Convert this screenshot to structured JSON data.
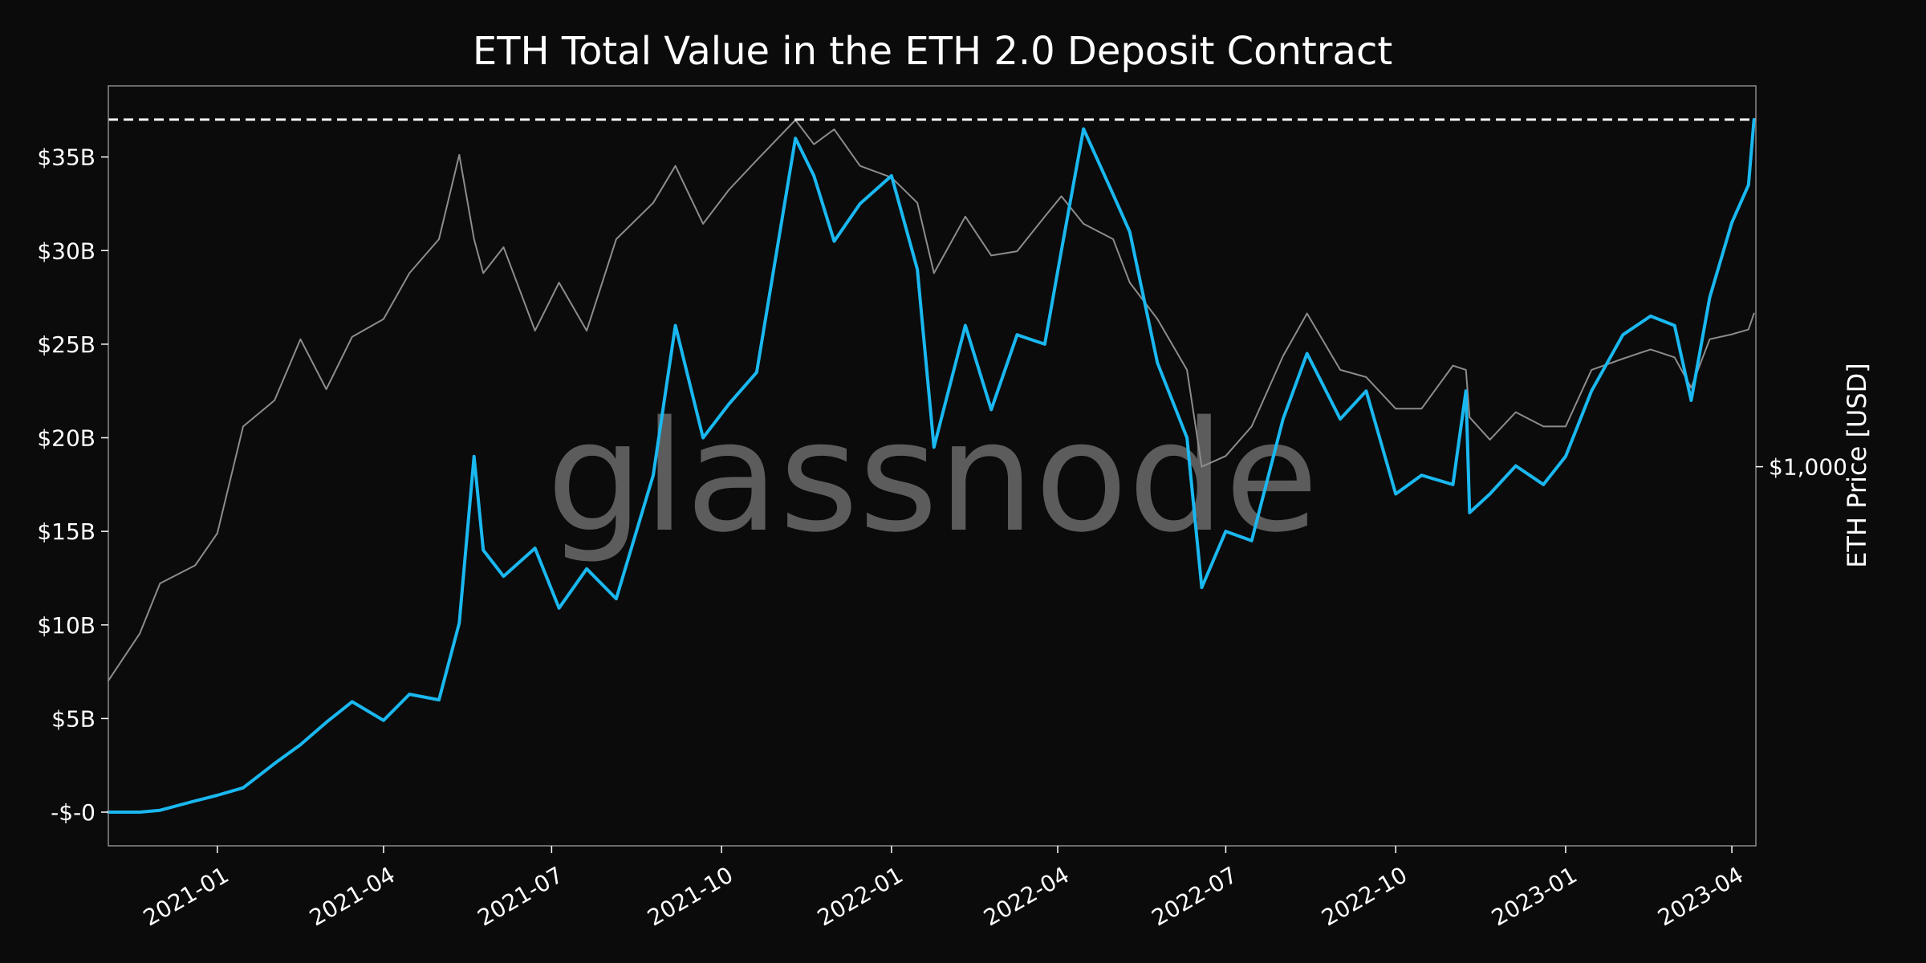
{
  "chart_data": {
    "type": "line",
    "title": "ETH Total Value in the ETH 2.0 Deposit Contract",
    "watermark": "glassnode",
    "ylabel_right": "ETH Price [USD]",
    "x_ticks": [
      "2021-01",
      "2021-04",
      "2021-07",
      "2021-10",
      "2022-01",
      "2022-04",
      "2022-07",
      "2022-10",
      "2023-01",
      "2023-04"
    ],
    "y_ticks_left": [
      "-$-0",
      "$5B",
      "$10B",
      "$15B",
      "$20B",
      "$25B",
      "$30B",
      "$35B"
    ],
    "y_ticks_left_values": [
      0,
      5,
      10,
      15,
      20,
      25,
      30,
      35
    ],
    "y_ticks_right": [
      "$1,000"
    ],
    "y_ticks_right_values": [
      1000
    ],
    "xlim": [
      "2020-11-03",
      "2023-04-14"
    ],
    "ylim_left": [
      -1.8,
      38.8
    ],
    "ylim_right": [
      180,
      5600
    ],
    "y_right_scale": "log",
    "grid": false,
    "ath_line": {
      "value": 37.0,
      "style": "dashed",
      "color": "#ffffff"
    },
    "colors": {
      "background": "#0b0b0b",
      "value": "#1ab8f0",
      "price": "#8c8c8c",
      "frame": "#8a8a8a"
    },
    "series": [
      {
        "role": "value",
        "axis": "left",
        "x": [
          "2020-11-03",
          "2020-11-20",
          "2020-12-01",
          "2020-12-20",
          "2021-01-01",
          "2021-01-15",
          "2021-02-01",
          "2021-02-15",
          "2021-03-01",
          "2021-03-15",
          "2021-04-01",
          "2021-04-15",
          "2021-05-01",
          "2021-05-12",
          "2021-05-20",
          "2021-05-25",
          "2021-06-05",
          "2021-06-22",
          "2021-07-05",
          "2021-07-20",
          "2021-08-05",
          "2021-08-25",
          "2021-09-06",
          "2021-09-21",
          "2021-10-05",
          "2021-10-20",
          "2021-11-10",
          "2021-11-20",
          "2021-12-01",
          "2021-12-15",
          "2022-01-01",
          "2022-01-15",
          "2022-01-24",
          "2022-02-10",
          "2022-02-24",
          "2022-03-10",
          "2022-03-25",
          "2022-04-03",
          "2022-04-15",
          "2022-05-01",
          "2022-05-10",
          "2022-05-25",
          "2022-06-10",
          "2022-06-18",
          "2022-07-01",
          "2022-07-15",
          "2022-08-01",
          "2022-08-14",
          "2022-09-01",
          "2022-09-15",
          "2022-10-01",
          "2022-10-15",
          "2022-11-01",
          "2022-11-08",
          "2022-11-10",
          "2022-11-21",
          "2022-12-05",
          "2022-12-20",
          "2023-01-01",
          "2023-01-15",
          "2023-02-01",
          "2023-02-16",
          "2023-03-01",
          "2023-03-10",
          "2023-03-20",
          "2023-04-01",
          "2023-04-10",
          "2023-04-13"
        ],
        "values": [
          0.0,
          0.0,
          0.1,
          0.6,
          0.9,
          1.3,
          2.6,
          3.6,
          4.8,
          5.9,
          4.9,
          6.3,
          6.0,
          10.1,
          19.0,
          14.0,
          12.6,
          14.1,
          10.9,
          13.0,
          11.4,
          18.0,
          26.0,
          20.0,
          21.8,
          23.5,
          36.0,
          34.0,
          30.5,
          32.5,
          34.0,
          29.0,
          19.5,
          26.0,
          21.5,
          25.5,
          25.0,
          30.0,
          36.5,
          33.0,
          31.0,
          24.0,
          20.0,
          12.0,
          15.0,
          14.5,
          21.0,
          24.5,
          21.0,
          22.5,
          17.0,
          18.0,
          17.5,
          22.5,
          16.0,
          17.0,
          18.5,
          17.5,
          19.0,
          22.5,
          25.5,
          26.5,
          26.0,
          22.0,
          27.5,
          31.5,
          33.5,
          37.0
        ]
      },
      {
        "role": "price",
        "axis": "right",
        "x": [
          "2020-11-03",
          "2020-11-20",
          "2020-12-01",
          "2020-12-20",
          "2021-01-01",
          "2021-01-15",
          "2021-02-01",
          "2021-02-15",
          "2021-03-01",
          "2021-03-15",
          "2021-04-01",
          "2021-04-15",
          "2021-05-01",
          "2021-05-12",
          "2021-05-20",
          "2021-05-25",
          "2021-06-05",
          "2021-06-22",
          "2021-07-05",
          "2021-07-20",
          "2021-08-05",
          "2021-08-25",
          "2021-09-06",
          "2021-09-21",
          "2021-10-05",
          "2021-10-20",
          "2021-11-10",
          "2021-11-20",
          "2021-12-01",
          "2021-12-15",
          "2022-01-01",
          "2022-01-15",
          "2022-01-24",
          "2022-02-10",
          "2022-02-24",
          "2022-03-10",
          "2022-03-25",
          "2022-04-03",
          "2022-04-15",
          "2022-05-01",
          "2022-05-10",
          "2022-05-25",
          "2022-06-10",
          "2022-06-18",
          "2022-07-01",
          "2022-07-15",
          "2022-08-01",
          "2022-08-14",
          "2022-09-01",
          "2022-09-15",
          "2022-10-01",
          "2022-10-15",
          "2022-11-01",
          "2022-11-08",
          "2022-11-10",
          "2022-11-21",
          "2022-12-05",
          "2022-12-20",
          "2023-01-01",
          "2023-01-15",
          "2023-02-01",
          "2023-02-16",
          "2023-03-01",
          "2023-03-10",
          "2023-03-20",
          "2023-04-01",
          "2023-04-10",
          "2023-04-13"
        ],
        "values": [
          380,
          470,
          590,
          640,
          740,
          1200,
          1350,
          1780,
          1420,
          1800,
          1950,
          2400,
          2800,
          4100,
          2800,
          2400,
          2700,
          1850,
          2300,
          1850,
          2800,
          3300,
          3900,
          3000,
          3500,
          4000,
          4800,
          4300,
          4600,
          3900,
          3700,
          3300,
          2400,
          3100,
          2600,
          2650,
          3100,
          3400,
          3000,
          2800,
          2300,
          1950,
          1550,
          1000,
          1050,
          1200,
          1650,
          2000,
          1550,
          1500,
          1300,
          1300,
          1580,
          1550,
          1250,
          1130,
          1280,
          1200,
          1200,
          1550,
          1630,
          1700,
          1640,
          1430,
          1780,
          1820,
          1860,
          2000
        ]
      }
    ]
  }
}
